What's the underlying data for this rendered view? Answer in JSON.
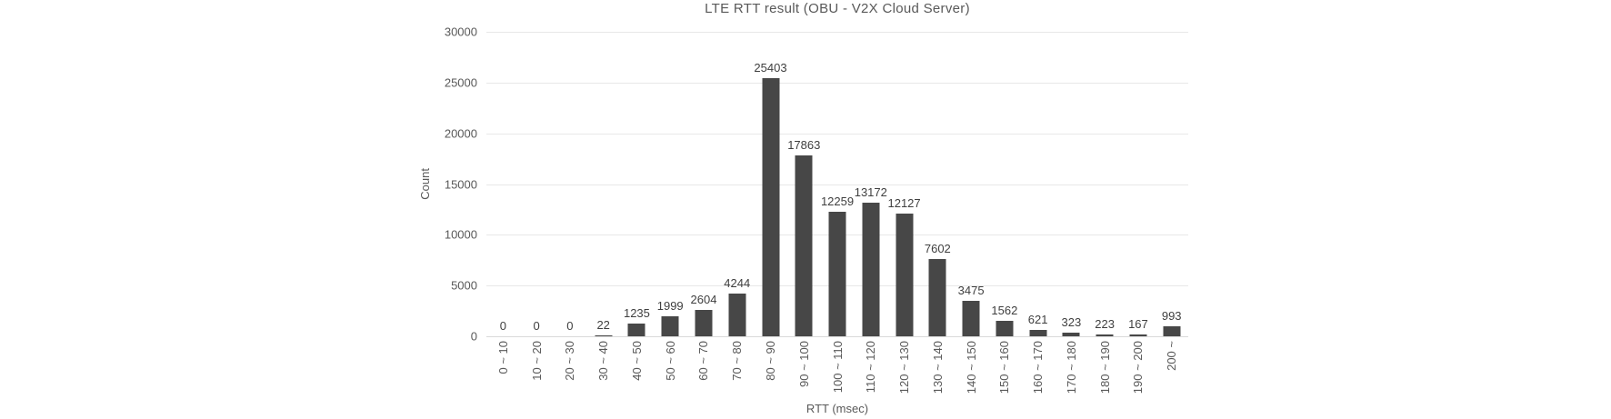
{
  "chart_data": {
    "type": "bar",
    "title": "LTE RTT result (OBU - V2X Cloud Server)",
    "xlabel": "RTT (msec)",
    "ylabel": "Count",
    "categories": [
      "0 ~ 10",
      "10 ~ 20",
      "20 ~ 30",
      "30 ~ 40",
      "40 ~ 50",
      "50 ~ 60",
      "60 ~ 70",
      "70 ~ 80",
      "80 ~ 90",
      "90 ~ 100",
      "100 ~ 110",
      "110 ~ 120",
      "120 ~ 130",
      "130 ~ 140",
      "140 ~ 150",
      "150 ~ 160",
      "160 ~ 170",
      "170 ~ 180",
      "180 ~ 190",
      "190 ~ 200",
      "200 ~"
    ],
    "values": [
      0,
      0,
      0,
      22,
      1235,
      1999,
      2604,
      4244,
      25403,
      17863,
      12259,
      13172,
      12127,
      7602,
      3475,
      1562,
      621,
      323,
      223,
      167,
      993
    ],
    "yticks": [
      0,
      5000,
      10000,
      15000,
      20000,
      25000,
      30000
    ],
    "ylim": [
      0,
      30000
    ],
    "grid": true,
    "legend": false,
    "bar_color": "#474747",
    "gridline_color": "#e8e8e8",
    "baseline_color": "#d9d9d9",
    "text_color": "#595959",
    "value_label_color": "#3f3f3f",
    "background_color": "#ffffff"
  }
}
